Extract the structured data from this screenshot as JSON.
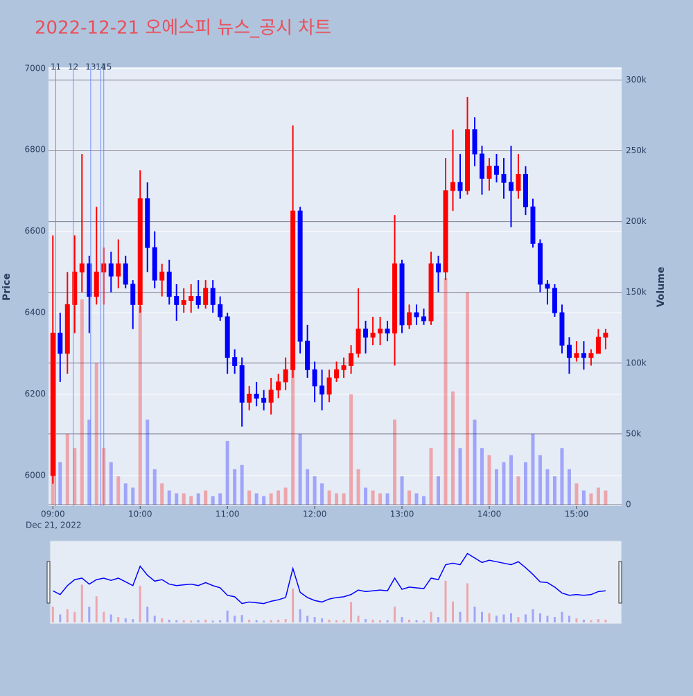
{
  "chart_data": {
    "type": "candlestick",
    "title": "2022-12-21 오에스피 뉴스_공시 차트",
    "ylabel": "Price",
    "y2label": "Volume",
    "x_date_label": "Dec 21, 2022",
    "colors": {
      "up": "#ff0000",
      "down": "#0000ff"
    },
    "rangeslider": true,
    "grid": true,
    "xlim": [
      "2022-12-21 08:57",
      "2022-12-21 15:31"
    ],
    "xticks": [
      {
        "value": "2022-12-21 09:00",
        "label": "09:00"
      },
      {
        "value": "2022-12-21 10:00",
        "label": "10:00"
      },
      {
        "value": "2022-12-21 11:00",
        "label": "11:00"
      },
      {
        "value": "2022-12-21 12:00",
        "label": "12:00"
      },
      {
        "value": "2022-12-21 13:00",
        "label": "13:00"
      },
      {
        "value": "2022-12-21 14:00",
        "label": "14:00"
      },
      {
        "value": "2022-12-21 15:00",
        "label": "15:00"
      }
    ],
    "ylim": [
      5925,
      7003
    ],
    "yticks": [
      6000,
      6200,
      6400,
      6600,
      6800,
      7000
    ],
    "y2lim": [
      -1000,
      309000
    ],
    "y2ticks": [
      0,
      {
        "value": 50000,
        "label": "50k"
      },
      {
        "value": 100000,
        "label": "100k"
      },
      {
        "value": 150000,
        "label": "150k"
      },
      {
        "value": 200000,
        "label": "200k"
      },
      {
        "value": 250000,
        "label": "250k"
      },
      {
        "value": 300000,
        "label": "300k"
      }
    ],
    "annotations": [
      {
        "x": "2022-12-21 09:02",
        "text": "11"
      },
      {
        "x": "2022-12-21 09:14",
        "text": "12"
      },
      {
        "x": "2022-12-21 09:26",
        "text": "13"
      },
      {
        "x": "2022-12-21 09:33",
        "text": "14"
      },
      {
        "x": "2022-12-21 09:35",
        "text": "15"
      }
    ],
    "x": [
      "2022-12-21 09:00",
      "2022-12-21 09:05",
      "2022-12-21 09:10",
      "2022-12-21 09:15",
      "2022-12-21 09:20",
      "2022-12-21 09:25",
      "2022-12-21 09:30",
      "2022-12-21 09:35",
      "2022-12-21 09:40",
      "2022-12-21 09:45",
      "2022-12-21 09:50",
      "2022-12-21 09:55",
      "2022-12-21 10:00",
      "2022-12-21 10:05",
      "2022-12-21 10:10",
      "2022-12-21 10:15",
      "2022-12-21 10:20",
      "2022-12-21 10:25",
      "2022-12-21 10:30",
      "2022-12-21 10:35",
      "2022-12-21 10:40",
      "2022-12-21 10:45",
      "2022-12-21 10:50",
      "2022-12-21 10:55",
      "2022-12-21 11:00",
      "2022-12-21 11:05",
      "2022-12-21 11:10",
      "2022-12-21 11:15",
      "2022-12-21 11:20",
      "2022-12-21 11:25",
      "2022-12-21 11:30",
      "2022-12-21 11:35",
      "2022-12-21 11:40",
      "2022-12-21 11:45",
      "2022-12-21 11:50",
      "2022-12-21 11:55",
      "2022-12-21 12:00",
      "2022-12-21 12:05",
      "2022-12-21 12:10",
      "2022-12-21 12:15",
      "2022-12-21 12:20",
      "2022-12-21 12:25",
      "2022-12-21 12:30",
      "2022-12-21 12:35",
      "2022-12-21 12:40",
      "2022-12-21 12:45",
      "2022-12-21 12:50",
      "2022-12-21 12:55",
      "2022-12-21 13:00",
      "2022-12-21 13:05",
      "2022-12-21 13:10",
      "2022-12-21 13:15",
      "2022-12-21 13:20",
      "2022-12-21 13:25",
      "2022-12-21 13:30",
      "2022-12-21 13:35",
      "2022-12-21 13:40",
      "2022-12-21 13:45",
      "2022-12-21 13:50",
      "2022-12-21 13:55",
      "2022-12-21 14:00",
      "2022-12-21 14:05",
      "2022-12-21 14:10",
      "2022-12-21 14:15",
      "2022-12-21 14:20",
      "2022-12-21 14:25",
      "2022-12-21 14:30",
      "2022-12-21 14:35",
      "2022-12-21 14:40",
      "2022-12-21 14:45",
      "2022-12-21 14:50",
      "2022-12-21 14:55",
      "2022-12-21 15:00",
      "2022-12-21 15:05",
      "2022-12-21 15:10",
      "2022-12-21 15:15",
      "2022-12-21 15:20"
    ],
    "open": [
      6000,
      6350,
      6300,
      6420,
      6500,
      6520,
      6440,
      6500,
      6520,
      6490,
      6520,
      6470,
      6420,
      6680,
      6560,
      6480,
      6500,
      6440,
      6420,
      6430,
      6440,
      6420,
      6460,
      6420,
      6390,
      6290,
      6270,
      6180,
      6200,
      6190,
      6180,
      6210,
      6230,
      6260,
      6650,
      6330,
      6260,
      6220,
      6200,
      6240,
      6260,
      6270,
      6300,
      6360,
      6340,
      6350,
      6360,
      6350,
      6520,
      6370,
      6400,
      6390,
      6380,
      6520,
      6500,
      6700,
      6720,
      6700,
      6850,
      6790,
      6730,
      6760,
      6740,
      6720,
      6700,
      6740,
      6660,
      6570,
      6470,
      6460,
      6400,
      6320,
      6290,
      6300,
      6290,
      6300,
      6340
    ],
    "high": [
      6590,
      6400,
      6500,
      6590,
      6790,
      6540,
      6660,
      6560,
      6550,
      6580,
      6540,
      6480,
      6750,
      6720,
      6600,
      6520,
      6530,
      6470,
      6460,
      6470,
      6480,
      6480,
      6480,
      6440,
      6400,
      6310,
      6290,
      6220,
      6230,
      6210,
      6240,
      6250,
      6290,
      6860,
      6660,
      6370,
      6280,
      6260,
      6260,
      6280,
      6290,
      6320,
      6460,
      6380,
      6390,
      6390,
      6380,
      6640,
      6530,
      6420,
      6420,
      6410,
      6550,
      6540,
      6780,
      6850,
      6790,
      6930,
      6880,
      6810,
      6780,
      6790,
      6780,
      6810,
      6790,
      6760,
      6680,
      6580,
      6480,
      6470,
      6420,
      6340,
      6330,
      6330,
      6310,
      6360,
      6360
    ],
    "low": [
      5980,
      6230,
      6250,
      6350,
      6450,
      6350,
      6420,
      6420,
      6450,
      6460,
      6460,
      6360,
      6400,
      6500,
      6460,
      6440,
      6420,
      6380,
      6400,
      6400,
      6410,
      6410,
      6400,
      6380,
      6250,
      6250,
      6120,
      6160,
      6170,
      6160,
      6150,
      6190,
      6210,
      6240,
      6300,
      6240,
      6180,
      6160,
      6180,
      6230,
      6240,
      6250,
      6290,
      6300,
      6320,
      6320,
      6330,
      6270,
      6350,
      6360,
      6370,
      6370,
      6370,
      6450,
      6480,
      6650,
      6680,
      6690,
      6760,
      6690,
      6700,
      6720,
      6680,
      6610,
      6680,
      6640,
      6560,
      6450,
      6420,
      6390,
      6300,
      6250,
      6280,
      6260,
      6270,
      6300,
      6310
    ],
    "close": [
      6350,
      6300,
      6420,
      6500,
      6520,
      6440,
      6500,
      6520,
      6490,
      6520,
      6470,
      6420,
      6680,
      6560,
      6480,
      6500,
      6440,
      6420,
      6430,
      6440,
      6420,
      6460,
      6420,
      6390,
      6290,
      6270,
      6180,
      6200,
      6190,
      6180,
      6210,
      6230,
      6260,
      6650,
      6330,
      6260,
      6220,
      6200,
      6240,
      6260,
      6270,
      6300,
      6360,
      6340,
      6350,
      6360,
      6350,
      6520,
      6370,
      6400,
      6390,
      6380,
      6520,
      6500,
      6700,
      6720,
      6700,
      6850,
      6790,
      6730,
      6760,
      6740,
      6720,
      6700,
      6740,
      6660,
      6570,
      6470,
      6460,
      6400,
      6320,
      6290,
      6300,
      6290,
      6300,
      6340,
      6350
    ],
    "volume": [
      60000,
      30000,
      50000,
      40000,
      145000,
      60000,
      100000,
      40000,
      30000,
      20000,
      15000,
      12000,
      140000,
      60000,
      25000,
      15000,
      10000,
      8000,
      8000,
      6000,
      8000,
      10000,
      6000,
      8000,
      45000,
      25000,
      28000,
      10000,
      8000,
      6000,
      8000,
      10000,
      12000,
      130000,
      50000,
      25000,
      20000,
      15000,
      10000,
      8000,
      8000,
      78000,
      25000,
      12000,
      10000,
      8000,
      8000,
      60000,
      20000,
      10000,
      8000,
      6000,
      40000,
      20000,
      160000,
      80000,
      40000,
      150000,
      60000,
      40000,
      35000,
      25000,
      30000,
      35000,
      20000,
      30000,
      50000,
      35000,
      25000,
      20000,
      40000,
      25000,
      15000,
      10000,
      8000,
      12000,
      10000
    ]
  }
}
